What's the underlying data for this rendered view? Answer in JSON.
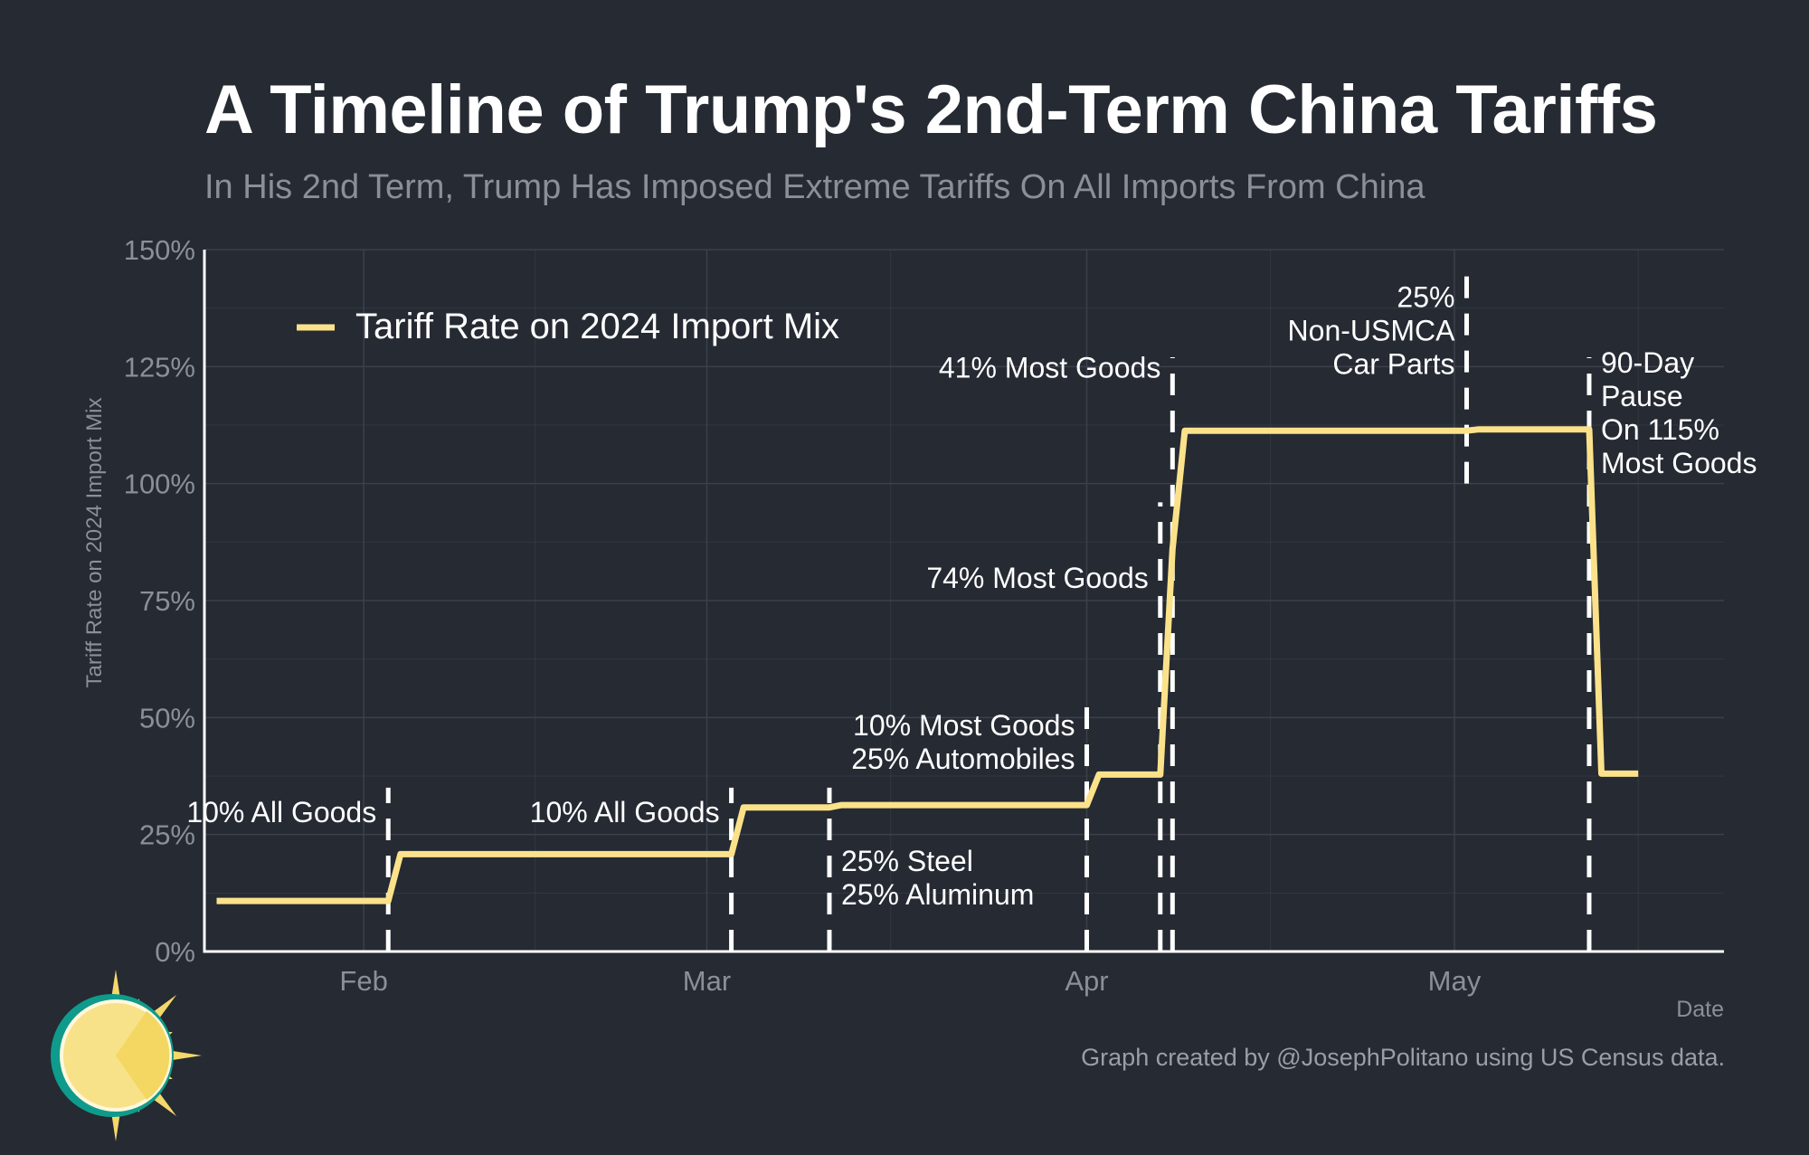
{
  "title": "A Timeline of Trump's 2nd-Term China Tariffs",
  "subtitle": "In His 2nd Term, Trump Has Imposed Extreme Tariffs On All Imports From China",
  "credit": "Graph created by @JosephPolitano using US Census data.",
  "colors": {
    "background": "#252a33",
    "line": "#fbe28a",
    "text": "#ffffff",
    "muted": "#8a8f98",
    "grid": "#3b414c",
    "logo_sun": "#f5d86a",
    "logo_ring": "#0e9b8c"
  },
  "logo": {
    "icon": "sun-logo-icon"
  },
  "chart_data": {
    "type": "line",
    "xlabel": "Date",
    "ylabel": "Tariff Rate on 2024 Import Mix",
    "xlim": [
      "2025-01-19",
      "2025-05-23"
    ],
    "ylim": [
      0,
      150
    ],
    "x_ticks": [
      {
        "date": "2025-02-01",
        "label": "Feb"
      },
      {
        "date": "2025-03-01",
        "label": "Mar"
      },
      {
        "date": "2025-04-01",
        "label": "Apr"
      },
      {
        "date": "2025-05-01",
        "label": "May"
      }
    ],
    "y_ticks": [
      {
        "value": 0,
        "label": "0%"
      },
      {
        "value": 25,
        "label": "25%"
      },
      {
        "value": 50,
        "label": "50%"
      },
      {
        "value": 75,
        "label": "75%"
      },
      {
        "value": 100,
        "label": "100%"
      },
      {
        "value": 125,
        "label": "125%"
      },
      {
        "value": 150,
        "label": "150%"
      }
    ],
    "grid": true,
    "legend": "top-left",
    "series": [
      {
        "name": "Tariff Rate on 2024 Import Mix",
        "points": [
          {
            "x": "2025-01-20",
            "y": 10.8
          },
          {
            "x": "2025-02-03",
            "y": 10.8
          },
          {
            "x": "2025-02-04",
            "y": 20.8
          },
          {
            "x": "2025-03-03",
            "y": 20.8
          },
          {
            "x": "2025-03-04",
            "y": 30.8
          },
          {
            "x": "2025-03-11",
            "y": 30.8
          },
          {
            "x": "2025-03-12",
            "y": 31.3
          },
          {
            "x": "2025-04-01",
            "y": 31.3
          },
          {
            "x": "2025-04-02",
            "y": 37.8
          },
          {
            "x": "2025-04-07",
            "y": 37.8
          },
          {
            "x": "2025-04-08",
            "y": 86.0
          },
          {
            "x": "2025-04-09",
            "y": 111.3
          },
          {
            "x": "2025-05-02",
            "y": 111.3
          },
          {
            "x": "2025-05-03",
            "y": 111.6
          },
          {
            "x": "2025-05-12",
            "y": 111.6
          },
          {
            "x": "2025-05-13",
            "y": 38.0
          },
          {
            "x": "2025-05-16",
            "y": 38.0
          }
        ]
      }
    ],
    "events": [
      {
        "date": "2025-02-03",
        "y_range": [
          0,
          35
        ],
        "label": [
          "10% All Goods"
        ],
        "label_side": "left",
        "label_y": 30
      },
      {
        "date": "2025-03-03",
        "y_range": [
          0,
          35
        ],
        "label": [
          "10% All Goods"
        ],
        "label_side": "left",
        "label_y": 30
      },
      {
        "date": "2025-03-11",
        "y_range": [
          0,
          35
        ],
        "label": [
          "25% Steel",
          "25% Aluminum"
        ],
        "label_side": "right",
        "label_y": 19.5
      },
      {
        "date": "2025-04-01",
        "y_range": [
          0,
          54
        ],
        "label": [
          "10% Most Goods",
          "25% Automobiles"
        ],
        "label_side": "left",
        "label_y": 48.5
      },
      {
        "date": "2025-04-07",
        "y_range": [
          0,
          96
        ],
        "label": [
          "74% Most Goods"
        ],
        "label_side": "left",
        "label_y": 80
      },
      {
        "date": "2025-04-08",
        "y_range": [
          0,
          127
        ],
        "label": [
          "41% Most Goods"
        ],
        "label_side": "left",
        "label_y": 125
      },
      {
        "date": "2025-05-02",
        "y_range": [
          100,
          146
        ],
        "label": [
          "25%",
          "Non-USMCA",
          "Car Parts"
        ],
        "label_side": "left",
        "label_y": 140
      },
      {
        "date": "2025-05-12",
        "y_range": [
          0,
          127
        ],
        "label": [
          "90-Day",
          "Pause",
          "On 115%",
          "Most Goods"
        ],
        "label_side": "right",
        "label_y": 126
      }
    ]
  }
}
